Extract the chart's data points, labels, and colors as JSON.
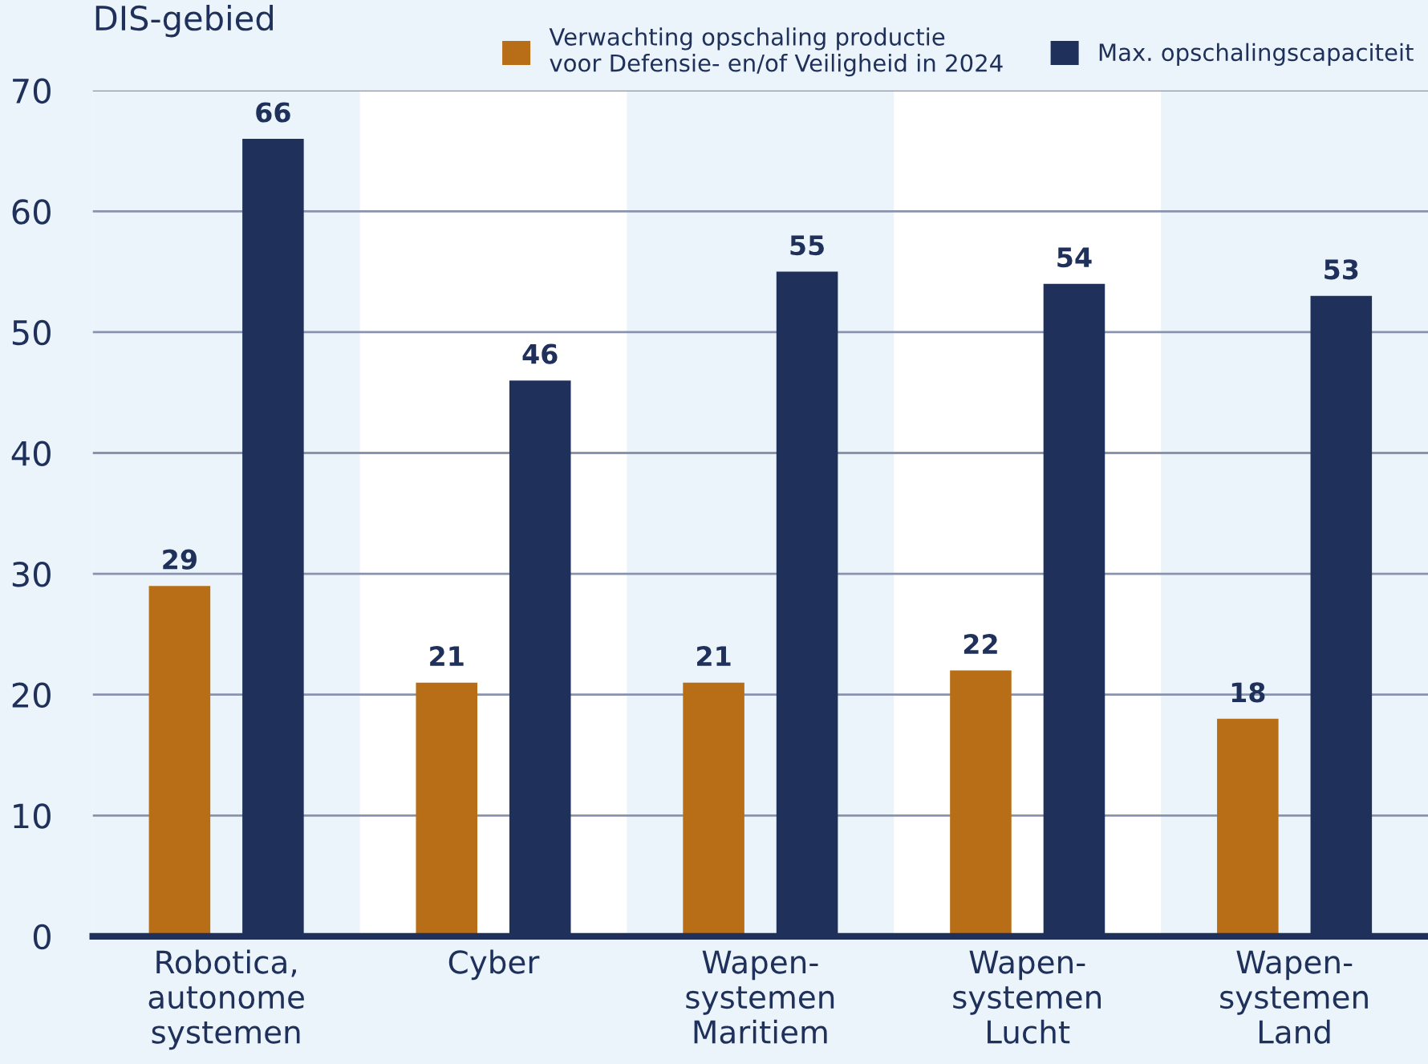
{
  "chart_data": {
    "type": "bar",
    "ylabel": "DIS-gebied",
    "categories": [
      "Robotica,\nautonome\nsystemen",
      "Cyber",
      "Wapen-\nsystemen\nMaritiem",
      "Wapen-\nsystemen\nLucht",
      "Wapen-\nsystemen\nLand"
    ],
    "series": [
      {
        "name": "Verwachting opschaling productie\nvoor Defensie- en/of Veiligheid in 2024",
        "color": "#b86e17",
        "values": [
          29,
          21,
          21,
          22,
          18
        ]
      },
      {
        "name": "Max. opschalingscapaciteit",
        "color": "#1f315a",
        "values": [
          66,
          46,
          55,
          54,
          53
        ]
      }
    ],
    "ylim": [
      0,
      70
    ],
    "yticks": [
      0,
      10,
      20,
      30,
      40,
      50,
      60,
      70
    ],
    "grid": "y",
    "legend": "top right",
    "data_labels": true
  }
}
